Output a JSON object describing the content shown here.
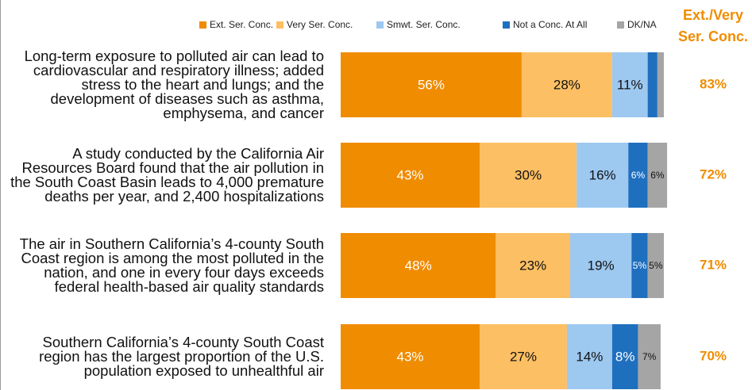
{
  "chart_data": {
    "type": "stacked-bar-horizontal",
    "categories": [
      "Long-term exposure to polluted air can lead to cardiovascular and respiratory illness; added stress to the heart and lungs; and the development of diseases such as asthma, emphysema, and cancer",
      "A study conducted by the California Air Resources Board found that the air pollution in the South Coast Basin leads to 4,000 premature deaths per year, and 2,400 hospitalizations",
      "The air in Southern California’s 4-county South Coast region is among the most polluted in the nation, and one in every four days exceeds federal health-based air quality standards",
      "Southern California’s 4-county South Coast region has the largest proportion of the U.S. population exposed to unhealthful air"
    ],
    "series": [
      {
        "name": "Ext. Ser. Conc.",
        "color": "#f08c00",
        "values": [
          56,
          43,
          48,
          43
        ],
        "value_labels": [
          "56%",
          "43%",
          "48%",
          "43%"
        ]
      },
      {
        "name": "Very Ser. Conc.",
        "color": "#fdbf63",
        "values": [
          28,
          30,
          23,
          27
        ],
        "value_labels": [
          "28%",
          "30%",
          "23%",
          "27%"
        ]
      },
      {
        "name": "Smwt. Ser. Conc.",
        "color": "#9dc8f0",
        "values": [
          11,
          16,
          19,
          14
        ],
        "value_labels": [
          "11%",
          "16%",
          "19%",
          "14%"
        ]
      },
      {
        "name": "Not a Conc. At All",
        "color": "#1f6fbf",
        "values": [
          3,
          6,
          5,
          8
        ],
        "value_labels": [
          null,
          "6%",
          "5%",
          "8%"
        ]
      },
      {
        "name": "DK/NA",
        "color": "#a5a5a5",
        "values": [
          2,
          6,
          5,
          7
        ],
        "value_labels": [
          null,
          "6%",
          "5%",
          "7%"
        ]
      }
    ],
    "xlim": [
      0,
      100
    ],
    "totals": {
      "title": "Ext./Very Ser. Conc.",
      "color": "#f08c00",
      "values": [
        83,
        72,
        71,
        70
      ],
      "value_labels": [
        "83%",
        "72%",
        "71%",
        "70%"
      ]
    }
  }
}
